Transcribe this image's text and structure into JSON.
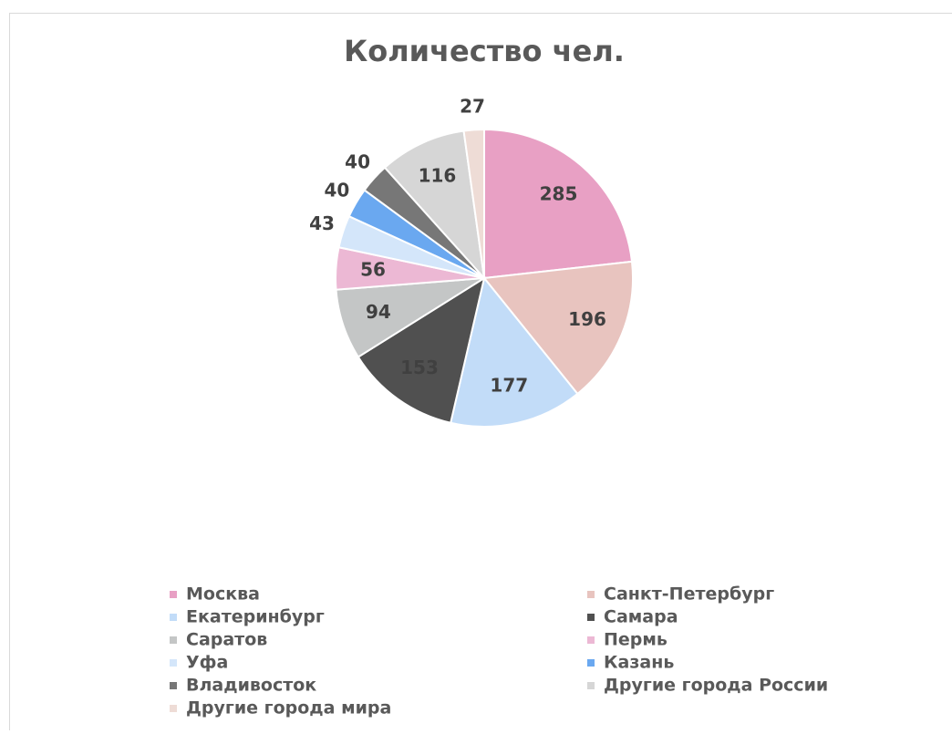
{
  "chart_data": {
    "type": "pie",
    "title": "Количество чел.",
    "categories": [
      "Москва",
      "Санкт-Петербург",
      "Екатеринбург",
      "Самара",
      "Саратов",
      "Пермь",
      "Уфа",
      "Казань",
      "Владивосток",
      "Другие города России",
      "Другие города мира"
    ],
    "values": [
      285,
      196,
      177,
      153,
      94,
      56,
      43,
      40,
      40,
      116,
      27
    ],
    "colors": [
      "#e8a0c4",
      "#e8c4bf",
      "#c2dcf8",
      "#505050",
      "#c4c6c6",
      "#ecb8d4",
      "#d4e6fa",
      "#6aa8f0",
      "#777777",
      "#d6d6d6",
      "#eedcd6"
    ],
    "legend": "bottom"
  }
}
